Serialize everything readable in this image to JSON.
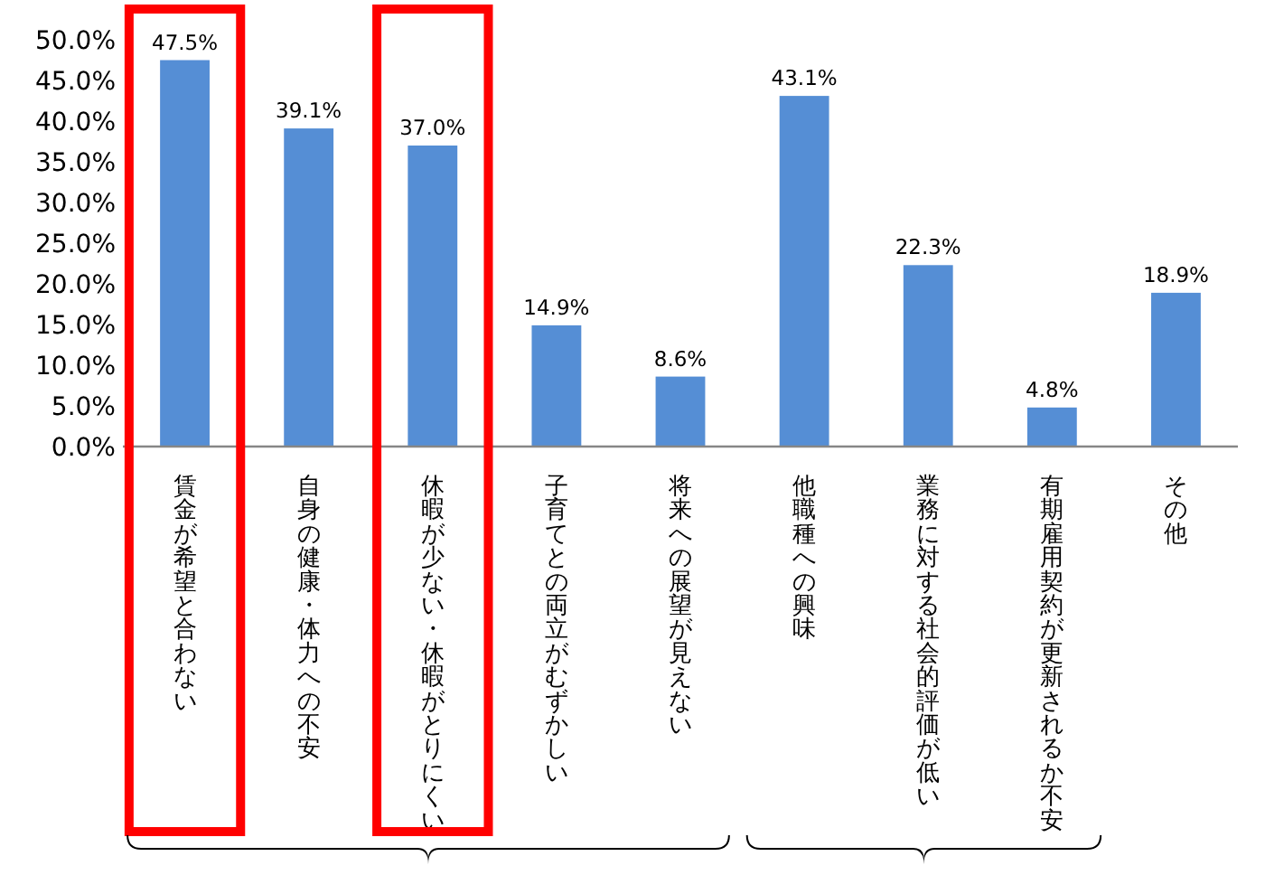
{
  "chart_data": {
    "type": "bar",
    "categories": [
      "賃金が希望と合わない",
      "自身の健康・体力への不安",
      "休暇が少ない・休暇がとりにくい",
      "子育てとの両立がむずかしい",
      "将来への展望が見えない",
      "他職種への興味",
      "業務に対する社会的評価が低い",
      "有期雇用契約が更新されるか不安",
      "その他"
    ],
    "values": [
      47.5,
      39.1,
      37.0,
      14.9,
      8.6,
      43.1,
      22.3,
      4.8,
      18.9
    ],
    "value_labels": [
      "47.5%",
      "39.1%",
      "37.0%",
      "14.9%",
      "8.6%",
      "43.1%",
      "22.3%",
      "4.8%",
      "18.9%"
    ],
    "color": "#558ed5",
    "ylim": [
      0,
      50
    ],
    "yticks": [
      {
        "value": 0,
        "label": "0.0%"
      },
      {
        "value": 5,
        "label": "5.0%"
      },
      {
        "value": 10,
        "label": "10.0%"
      },
      {
        "value": 15,
        "label": "15.0%"
      },
      {
        "value": 20,
        "label": "20.0%"
      },
      {
        "value": 25,
        "label": "25.0%"
      },
      {
        "value": 30,
        "label": "30.0%"
      },
      {
        "value": 35,
        "label": "35.0%"
      },
      {
        "value": 40,
        "label": "40.0%"
      },
      {
        "value": 45,
        "label": "45.0%"
      },
      {
        "value": 50,
        "label": "50.0%"
      }
    ],
    "bands": [
      {
        "axis": "x",
        "from": "賃金が希望と合わない",
        "to": "賃金が希望と合わない",
        "color": "#ff0000"
      },
      {
        "axis": "x",
        "from": "休暇が少ない・休暇がとりにくい",
        "to": "休暇が少ない・休暇がとりにくい",
        "color": "#ff0000"
      }
    ],
    "grid": false
  }
}
